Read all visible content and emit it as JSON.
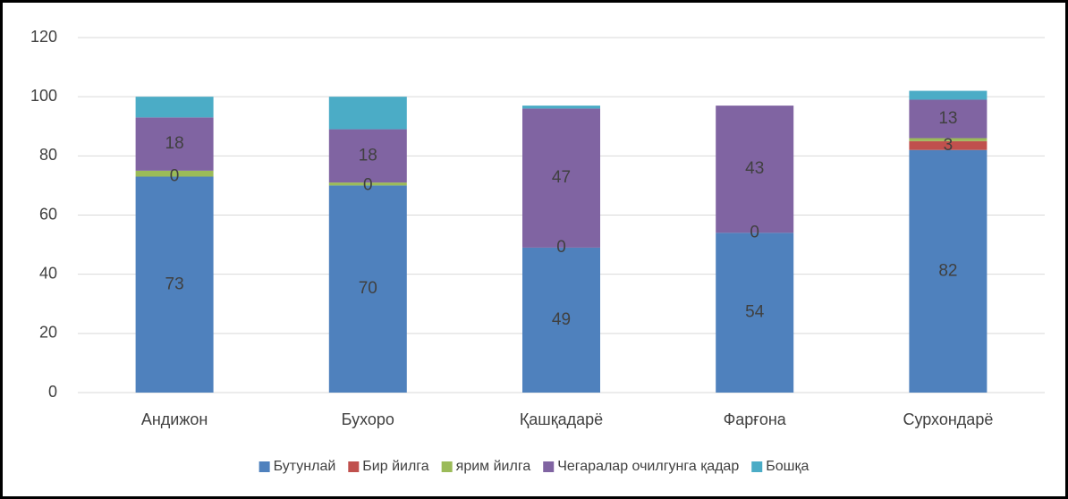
{
  "chart_data": {
    "type": "stacked-bar",
    "categories": [
      "Андижон",
      "Бухоро",
      "Қашқадарё",
      "Фарғона",
      "Сурхондарё"
    ],
    "series": [
      {
        "name": "Бутунлай",
        "color": "#4f81bd",
        "values": [
          73,
          70,
          49,
          54,
          82
        ],
        "data_labels": true
      },
      {
        "name": "Бир йилга",
        "color": "#c0504d",
        "values": [
          0,
          0,
          0,
          0,
          3
        ],
        "data_labels": true
      },
      {
        "name": "ярим йилга",
        "color": "#9bbb59",
        "values": [
          2,
          1,
          0,
          0,
          1
        ],
        "data_labels": false
      },
      {
        "name": "Чегаралар очилгунга қадар",
        "color": "#8064a2",
        "values": [
          18,
          18,
          47,
          43,
          13
        ],
        "data_labels": true
      },
      {
        "name": "Бошқа",
        "color": "#4bacc6",
        "values": [
          7,
          11,
          1,
          0,
          3
        ],
        "data_labels": false
      }
    ],
    "ylim": [
      0,
      120
    ],
    "yticks": [
      0,
      20,
      40,
      60,
      80,
      100,
      120
    ],
    "grid": true,
    "legend": "bottom"
  }
}
